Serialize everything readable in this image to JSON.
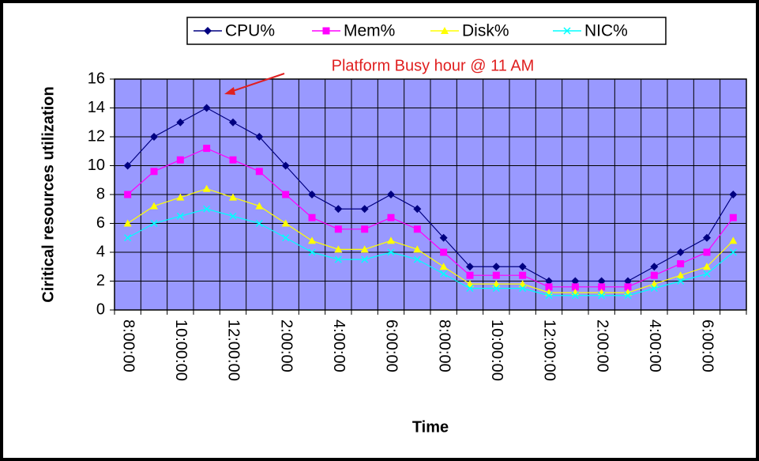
{
  "chart_data": {
    "type": "line",
    "annotation": "Platform Busy hour @ 11 AM",
    "xlabel": "Time",
    "ylabel": "Ciritical resources utilization",
    "categories": [
      "8:00:00",
      null,
      "10:00:00",
      null,
      "12:00:00",
      null,
      "2:00:00",
      null,
      "4:00:00",
      null,
      "6:00:00",
      null,
      "8:00:00",
      null,
      "10:00:00",
      null,
      "12:00:00",
      null,
      "2:00:00",
      null,
      "4:00:00",
      null,
      "6:00:00",
      null
    ],
    "series": [
      {
        "name": "CPU%",
        "color": "#000080",
        "marker": "diamond",
        "values": [
          10,
          12,
          13,
          14,
          13,
          12,
          10,
          8,
          7,
          7,
          8,
          7,
          5,
          3,
          3,
          3,
          2,
          2,
          2,
          2,
          3,
          4,
          5,
          8
        ]
      },
      {
        "name": "Mem%",
        "color": "#ff00ff",
        "marker": "square",
        "values": [
          8,
          9.6,
          10.4,
          11.2,
          10.4,
          9.6,
          8,
          6.4,
          5.6,
          5.6,
          6.4,
          5.6,
          4,
          2.4,
          2.4,
          2.4,
          1.6,
          1.6,
          1.6,
          1.6,
          2.4,
          3.2,
          4,
          6.4
        ]
      },
      {
        "name": "Disk%",
        "color": "#ffff00",
        "marker": "triangle",
        "values": [
          6,
          7.2,
          7.8,
          8.4,
          7.8,
          7.2,
          6,
          4.8,
          4.2,
          4.2,
          4.8,
          4.2,
          3,
          1.8,
          1.8,
          1.8,
          1.2,
          1.2,
          1.2,
          1.2,
          1.8,
          2.4,
          3,
          4.8
        ]
      },
      {
        "name": "NIC%",
        "color": "#00ffff",
        "marker": "x",
        "values": [
          5,
          6,
          6.5,
          7,
          6.5,
          6,
          5,
          4,
          3.5,
          3.5,
          4,
          3.5,
          2.5,
          1.5,
          1.5,
          1.5,
          1,
          1,
          1,
          1,
          1.5,
          2,
          2.5,
          4
        ]
      }
    ],
    "ylim": [
      0,
      16
    ],
    "yticks": [
      0,
      2,
      4,
      6,
      8,
      10,
      12,
      14,
      16
    ],
    "grid": true,
    "background": "#9999ff",
    "legend": "top"
  }
}
